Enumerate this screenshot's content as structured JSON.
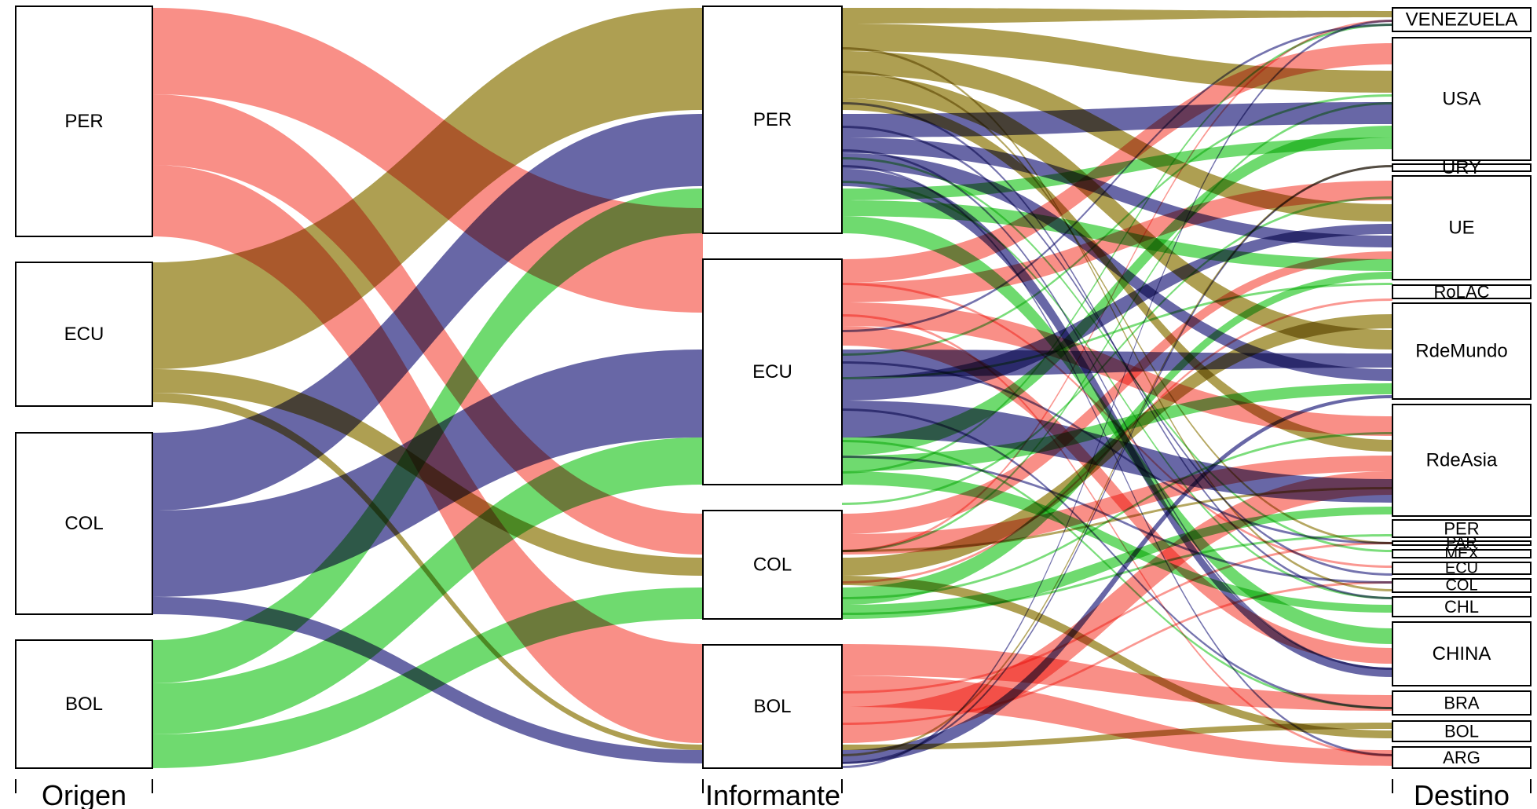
{
  "diagram": {
    "type": "alluvial",
    "axes": [
      "Origen",
      "Informante",
      "Destino"
    ],
    "colors": {
      "PER": "#f8766d",
      "ECU": "#9c8a2c",
      "COL": "#474593",
      "BOL": "#4fd24f"
    },
    "origen_nodes": [
      "PER",
      "ECU",
      "COL",
      "BOL"
    ],
    "informante_nodes": [
      "PER",
      "ECU",
      "COL",
      "BOL"
    ],
    "destino_nodes": [
      "VENEZUELA",
      "USA",
      "URY",
      "UE",
      "RoLAC",
      "RdeMundo",
      "RdeAsia",
      "PER",
      "PAR",
      "MEX",
      "ECU",
      "COL",
      "CHL",
      "CHINA",
      "BRA",
      "BOL",
      "ARG"
    ]
  }
}
